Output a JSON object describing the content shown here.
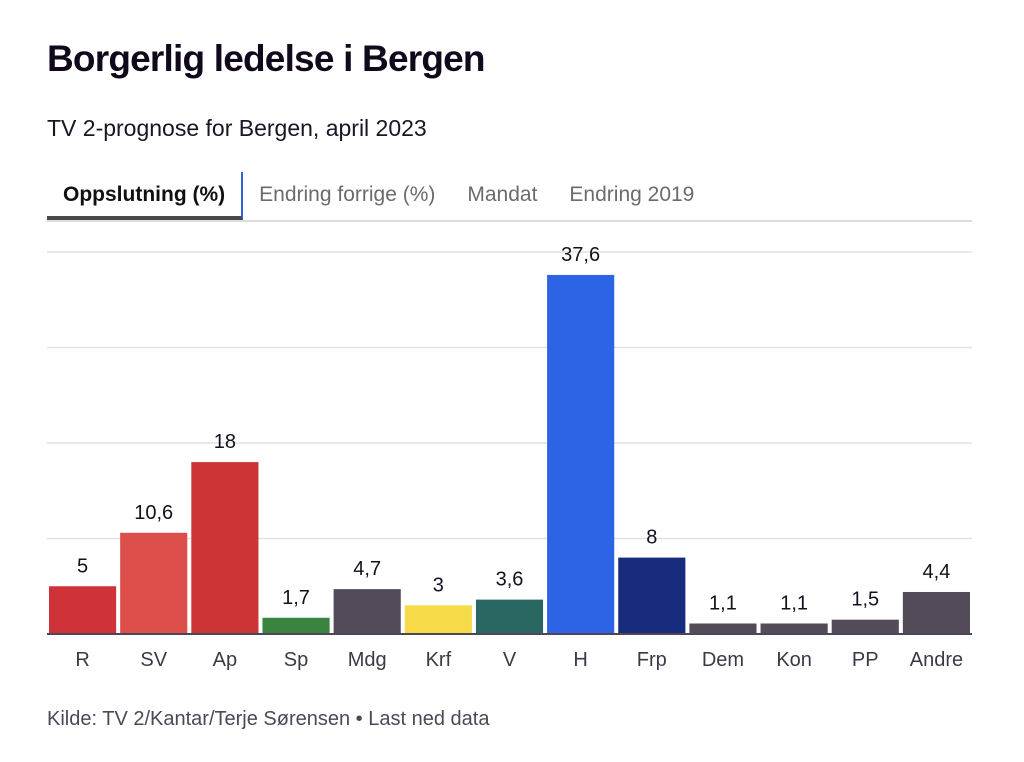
{
  "header": {
    "title": "Borgerlig ledelse i Bergen",
    "subtitle": "TV 2-prognose for Bergen, april 2023"
  },
  "tabs": [
    {
      "label": "Oppslutning (%)",
      "active": true
    },
    {
      "label": "Endring forrige (%)",
      "active": false
    },
    {
      "label": "Mandat",
      "active": false
    },
    {
      "label": "Endring 2019",
      "active": false
    }
  ],
  "footer": {
    "source": "Kilde: TV 2/Kantar/Terje Sørensen",
    "separator": " • ",
    "download_link": "Last ned data"
  },
  "chart_data": {
    "type": "bar",
    "title": "Borgerlig ledelse i Bergen",
    "subtitle": "TV 2-prognose for Bergen, april 2023",
    "xlabel": "",
    "ylabel": "Oppslutning (%)",
    "categories": [
      "R",
      "SV",
      "Ap",
      "Sp",
      "Mdg",
      "Krf",
      "V",
      "H",
      "Frp",
      "Dem",
      "Kon",
      "PP",
      "Andre"
    ],
    "values": [
      5,
      10.6,
      18,
      1.7,
      4.7,
      3,
      3.6,
      37.6,
      8,
      1.1,
      1.1,
      1.5,
      4.4
    ],
    "value_labels": [
      "5",
      "10,6",
      "18",
      "1,7",
      "4,7",
      "3",
      "3,6",
      "37,6",
      "8",
      "1,1",
      "1,1",
      "1,5",
      "4,4"
    ],
    "colors": [
      "#cf3339",
      "#dc4e4a",
      "#cc3535",
      "#3a8440",
      "#544b59",
      "#f6da48",
      "#2a6662",
      "#2d63e5",
      "#172c7c",
      "#544b59",
      "#544b59",
      "#544b59",
      "#544b59"
    ],
    "gridlines": [
      10,
      20,
      30,
      40
    ],
    "grid": true,
    "ylim": [
      0,
      43
    ],
    "legend": "none"
  }
}
